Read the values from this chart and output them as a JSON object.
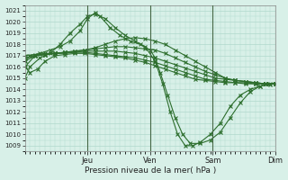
{
  "title": "Pression niveau de la mer( hPa )",
  "background_color": "#cce8df",
  "plot_bg_color": "#d8f0e8",
  "grid_color": "#b0d8cc",
  "line_color": "#2d6e2d",
  "ylim": [
    1008.5,
    1021.5
  ],
  "yticks": [
    1009,
    1010,
    1011,
    1012,
    1013,
    1014,
    1015,
    1016,
    1017,
    1018,
    1019,
    1020,
    1021
  ],
  "day_labels": [
    "Jeu",
    "Ven",
    "Sam",
    "Dim"
  ],
  "day_positions": [
    0.25,
    0.5,
    0.75,
    1.0
  ],
  "xlim": [
    0,
    1.0
  ],
  "lines": [
    {
      "x": [
        0.0,
        0.02,
        0.06,
        0.1,
        0.14,
        0.18,
        0.22,
        0.25,
        0.28,
        0.3,
        0.34,
        0.38,
        0.42,
        0.46,
        0.5,
        0.52,
        0.54,
        0.57,
        0.6,
        0.63,
        0.66,
        0.7,
        0.74,
        0.78,
        0.82,
        0.86,
        0.9,
        0.94,
        0.98
      ],
      "y": [
        1016.5,
        1017.0,
        1017.2,
        1017.5,
        1017.8,
        1018.3,
        1019.2,
        1020.3,
        1020.8,
        1020.5,
        1019.5,
        1018.8,
        1018.3,
        1018.0,
        1017.5,
        1016.8,
        1015.5,
        1013.5,
        1011.5,
        1010.0,
        1009.2,
        1009.2,
        1009.5,
        1010.2,
        1011.5,
        1012.8,
        1013.8,
        1014.3,
        1014.5
      ]
    },
    {
      "x": [
        0.0,
        0.02,
        0.06,
        0.1,
        0.14,
        0.18,
        0.22,
        0.25,
        0.28,
        0.32,
        0.36,
        0.4,
        0.44,
        0.48,
        0.52,
        0.55,
        0.58,
        0.61,
        0.64,
        0.67,
        0.7,
        0.74,
        0.78,
        0.82,
        0.86,
        0.9,
        0.94,
        0.98
      ],
      "y": [
        1015.0,
        1016.0,
        1016.8,
        1017.2,
        1018.0,
        1019.0,
        1019.8,
        1020.5,
        1020.7,
        1020.3,
        1019.5,
        1018.8,
        1018.3,
        1017.8,
        1016.5,
        1014.5,
        1012.0,
        1010.0,
        1009.0,
        1009.0,
        1009.3,
        1010.0,
        1011.0,
        1012.5,
        1013.5,
        1014.0,
        1014.3,
        1014.4
      ]
    },
    {
      "x": [
        0.0,
        0.04,
        0.08,
        0.12,
        0.16,
        0.2,
        0.24,
        0.28,
        0.32,
        0.36,
        0.4,
        0.44,
        0.48,
        0.52,
        0.56,
        0.6,
        0.64,
        0.68,
        0.72,
        0.76,
        0.8,
        0.84,
        0.88,
        0.92,
        0.96,
        1.0
      ],
      "y": [
        1016.0,
        1017.0,
        1017.1,
        1017.2,
        1017.3,
        1017.4,
        1017.5,
        1017.7,
        1018.0,
        1018.3,
        1018.5,
        1018.6,
        1018.5,
        1018.3,
        1018.0,
        1017.5,
        1017.0,
        1016.5,
        1016.0,
        1015.5,
        1015.0,
        1014.8,
        1014.7,
        1014.6,
        1014.5,
        1014.5
      ]
    },
    {
      "x": [
        0.0,
        0.04,
        0.08,
        0.12,
        0.16,
        0.2,
        0.24,
        0.28,
        0.32,
        0.36,
        0.4,
        0.44,
        0.48,
        0.52,
        0.56,
        0.6,
        0.64,
        0.68,
        0.72,
        0.76,
        0.8,
        0.84,
        0.88,
        0.92,
        0.96,
        1.0
      ],
      "y": [
        1016.8,
        1017.0,
        1017.1,
        1017.2,
        1017.3,
        1017.4,
        1017.5,
        1017.6,
        1017.7,
        1017.8,
        1017.8,
        1017.7,
        1017.6,
        1017.5,
        1017.2,
        1016.8,
        1016.4,
        1016.0,
        1015.6,
        1015.3,
        1015.0,
        1014.8,
        1014.7,
        1014.6,
        1014.5,
        1014.5
      ]
    },
    {
      "x": [
        0.0,
        0.04,
        0.08,
        0.12,
        0.16,
        0.2,
        0.24,
        0.28,
        0.32,
        0.36,
        0.4,
        0.44,
        0.48,
        0.52,
        0.56,
        0.6,
        0.64,
        0.68,
        0.72,
        0.76,
        0.8,
        0.84,
        0.88,
        0.92,
        0.96,
        1.0
      ],
      "y": [
        1017.0,
        1017.1,
        1017.2,
        1017.2,
        1017.3,
        1017.3,
        1017.4,
        1017.4,
        1017.4,
        1017.4,
        1017.3,
        1017.2,
        1017.0,
        1016.8,
        1016.5,
        1016.2,
        1015.9,
        1015.6,
        1015.3,
        1015.0,
        1014.9,
        1014.8,
        1014.7,
        1014.6,
        1014.5,
        1014.5
      ]
    },
    {
      "x": [
        0.0,
        0.04,
        0.08,
        0.12,
        0.16,
        0.2,
        0.24,
        0.28,
        0.32,
        0.36,
        0.4,
        0.44,
        0.48,
        0.52,
        0.56,
        0.6,
        0.64,
        0.68,
        0.72,
        0.76,
        0.8,
        0.84,
        0.88,
        0.92,
        0.96,
        1.0
      ],
      "y": [
        1016.5,
        1017.0,
        1017.1,
        1017.2,
        1017.2,
        1017.3,
        1017.3,
        1017.2,
        1017.1,
        1017.0,
        1016.9,
        1016.8,
        1016.6,
        1016.4,
        1016.1,
        1015.8,
        1015.5,
        1015.2,
        1014.9,
        1014.8,
        1014.7,
        1014.6,
        1014.6,
        1014.5,
        1014.5,
        1014.5
      ]
    },
    {
      "x": [
        0.0,
        0.02,
        0.05,
        0.08,
        0.12,
        0.16,
        0.2,
        0.24,
        0.28,
        0.32,
        0.36,
        0.4,
        0.44,
        0.48,
        0.52,
        0.56,
        0.6,
        0.64,
        0.68,
        0.72,
        0.76,
        0.8,
        0.84,
        0.88,
        0.92,
        0.96,
        1.0
      ],
      "y": [
        1016.0,
        1015.5,
        1015.8,
        1016.5,
        1017.0,
        1017.1,
        1017.2,
        1017.2,
        1017.1,
        1017.0,
        1016.9,
        1016.8,
        1016.6,
        1016.4,
        1016.1,
        1015.8,
        1015.5,
        1015.2,
        1014.9,
        1014.8,
        1014.7,
        1014.6,
        1014.6,
        1014.5,
        1014.5,
        1014.5,
        1014.5
      ]
    }
  ]
}
